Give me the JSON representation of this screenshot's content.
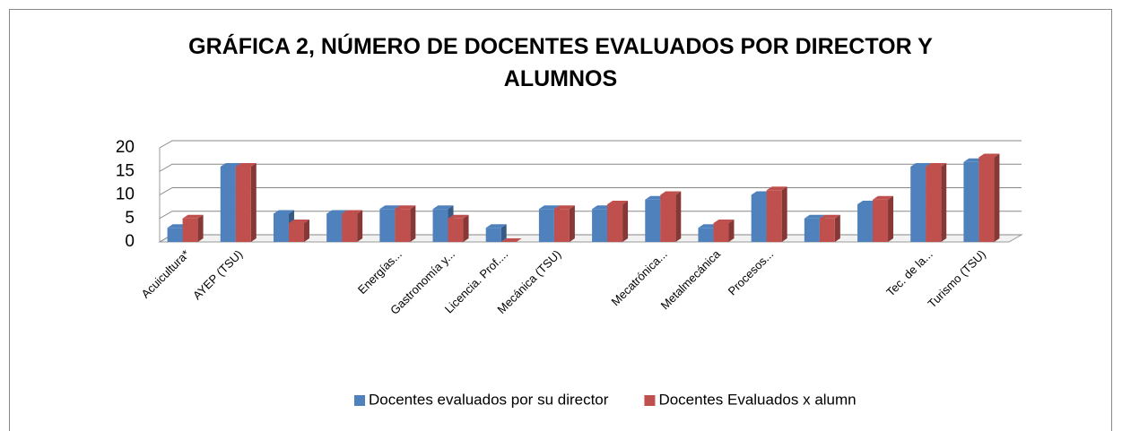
{
  "chart_data": {
    "type": "bar3d",
    "title": "GRÁFICA 2, NÚMERO DE DOCENTES EVALUADOS POR DIRECTOR Y ALUMNOS",
    "categories": [
      "Acuicultura*",
      "AYEP (TSU)",
      null,
      null,
      "Energías...",
      "Gastronomía y...",
      "Licencia.  Prof....",
      "Mecánica (TSU)",
      null,
      "Mecatrónica...",
      "Metalmecánica",
      "Procesos...",
      null,
      null,
      "Tec. de la...",
      "Turismo (TSU)"
    ],
    "series": [
      {
        "name": "Docentes evaluados por su director",
        "color": "#4f81bd",
        "values": [
          3,
          16,
          6,
          6,
          7,
          7,
          3,
          7,
          7,
          9,
          3,
          10,
          5,
          8,
          16,
          17
        ]
      },
      {
        "name": "Docentes Evaluados x alumn",
        "color": "#c0504d",
        "values": [
          5,
          16,
          4,
          6,
          7,
          5,
          0,
          7,
          8,
          10,
          4,
          11,
          5,
          9,
          16,
          18
        ]
      }
    ],
    "ylim": [
      0,
      20
    ],
    "yticks": [
      0,
      5,
      10,
      15,
      20
    ],
    "grid": true,
    "legend": "bottom"
  }
}
